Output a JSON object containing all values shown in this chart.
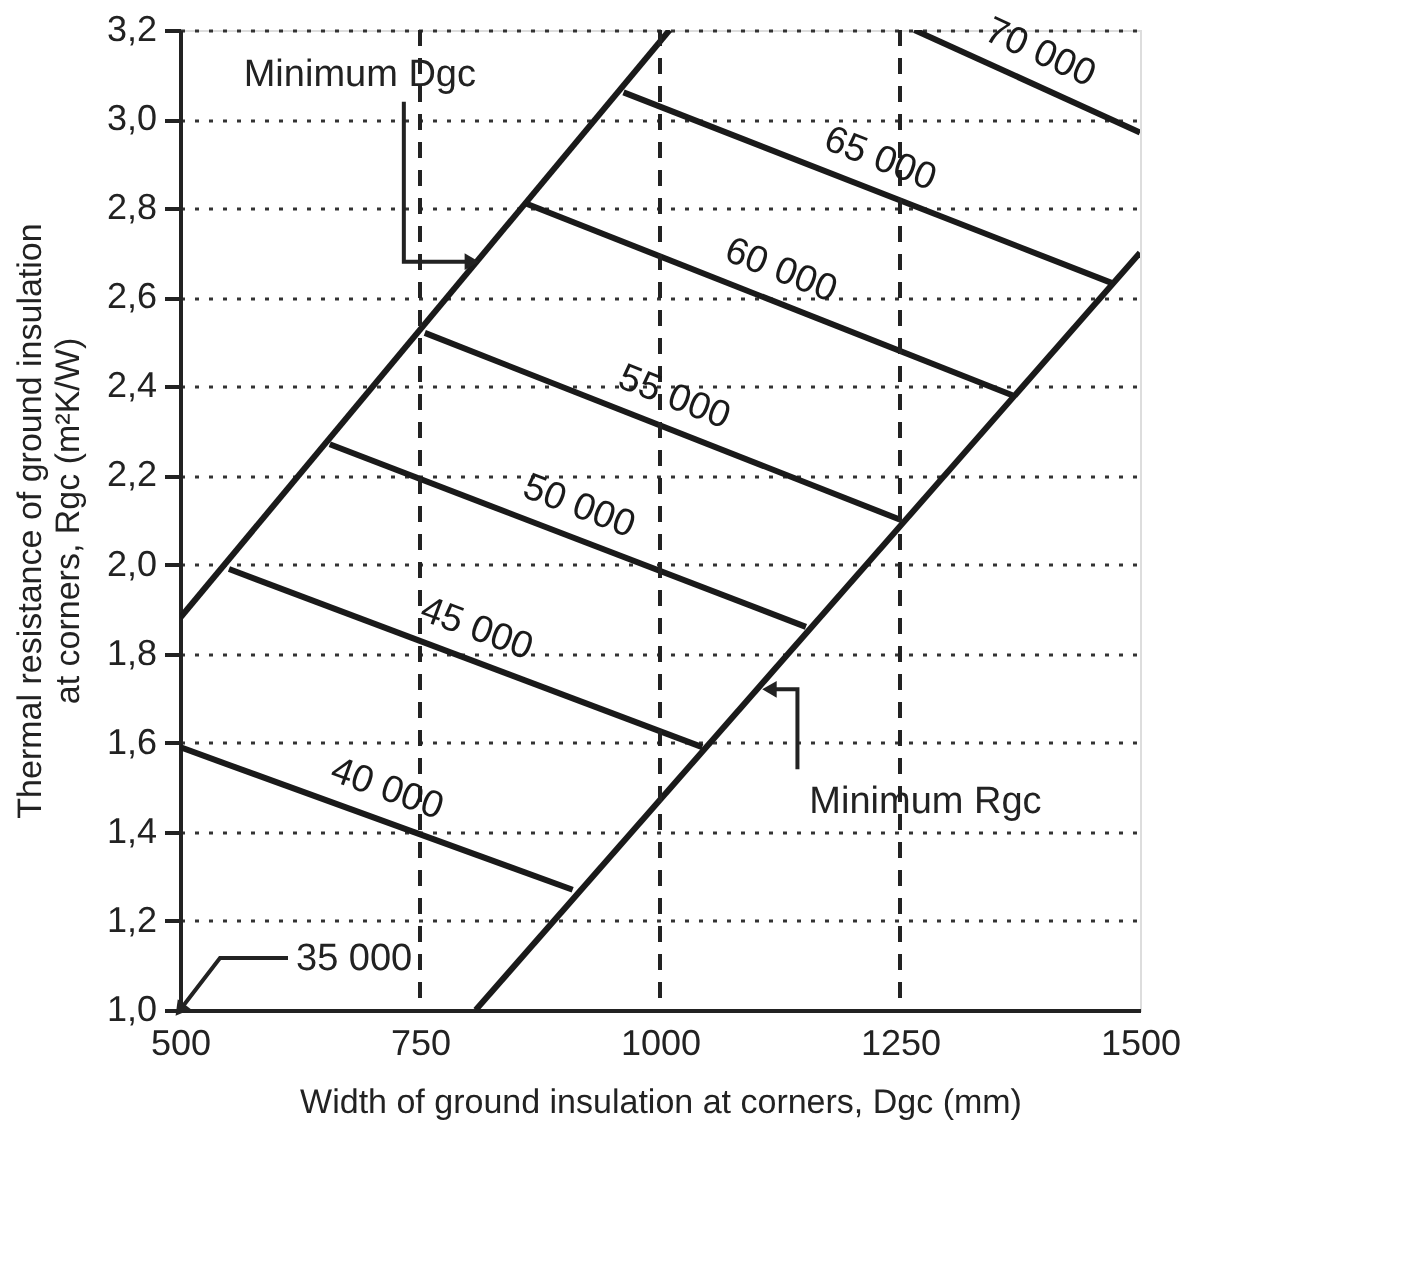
{
  "chart_data": {
    "type": "line",
    "xlabel": "Width of ground insulation at corners, Dgc  (mm)",
    "ylabel": "Thermal resistance of ground insulation\nat corners, Rgc  (m²K/W)",
    "xlim": [
      500,
      1500
    ],
    "xticks": [
      500,
      750,
      1000,
      1250,
      1500
    ],
    "ylim": [
      1.0,
      3.2
    ],
    "yticks": [
      {
        "value": 1.0,
        "label": "1,0"
      },
      {
        "value": 1.2,
        "label": "1,2"
      },
      {
        "value": 1.4,
        "label": "1,4"
      },
      {
        "value": 1.6,
        "label": "1,6"
      },
      {
        "value": 1.8,
        "label": "1,8"
      },
      {
        "value": 2.0,
        "label": "2,0"
      },
      {
        "value": 2.2,
        "label": "2,2"
      },
      {
        "value": 2.4,
        "label": "2,4"
      },
      {
        "value": 2.6,
        "label": "2,6"
      },
      {
        "value": 2.8,
        "label": "2,8"
      },
      {
        "value": 3.0,
        "label": "3,0"
      },
      {
        "value": 3.2,
        "label": "3,2"
      }
    ],
    "grid": "y",
    "ref_lines": [
      {
        "axis": "x",
        "value": 750,
        "line_style": "dashed"
      },
      {
        "axis": "x",
        "value": 1000,
        "line_style": "dashed"
      },
      {
        "axis": "x",
        "value": 1250,
        "line_style": "dashed"
      }
    ],
    "series": [
      {
        "color": "#1a1a1a",
        "x": [
          500,
          1010
        ],
        "values": [
          1.88,
          3.2
        ]
      },
      {
        "color": "#1a1a1a",
        "x": [
          808,
          1500
        ],
        "values": [
          1.0,
          2.7
        ]
      },
      {
        "name": "40 000",
        "color": "#1a1a1a",
        "x": [
          500,
          909
        ],
        "values": [
          1.59,
          1.27
        ]
      },
      {
        "name": "45 000",
        "color": "#1a1a1a",
        "x": [
          551,
          1044
        ],
        "values": [
          1.99,
          1.59
        ]
      },
      {
        "name": "50 000",
        "color": "#1a1a1a",
        "x": [
          656,
          1152
        ],
        "values": [
          2.27,
          1.86
        ]
      },
      {
        "name": "55 000",
        "color": "#1a1a1a",
        "x": [
          755,
          1251
        ],
        "values": [
          2.52,
          2.1
        ]
      },
      {
        "name": "60 000",
        "color": "#1a1a1a",
        "x": [
          861,
          1367
        ],
        "values": [
          2.81,
          2.38
        ]
      },
      {
        "name": "65 000",
        "color": "#1a1a1a",
        "x": [
          962,
          1473
        ],
        "values": [
          3.06,
          2.63
        ]
      },
      {
        "name": "70 000",
        "color": "#1a1a1a",
        "x": [
          1265,
          1500
        ],
        "values": [
          3.2,
          2.97
        ]
      }
    ],
    "annotations": [
      {
        "text": "35 000",
        "x": 500,
        "y": 1.0
      },
      {
        "text": "Minimum Dgc",
        "x": 804,
        "y": 2.68
      },
      {
        "text": "Minimum Rgc",
        "x": 1114,
        "y": 1.72
      }
    ]
  }
}
